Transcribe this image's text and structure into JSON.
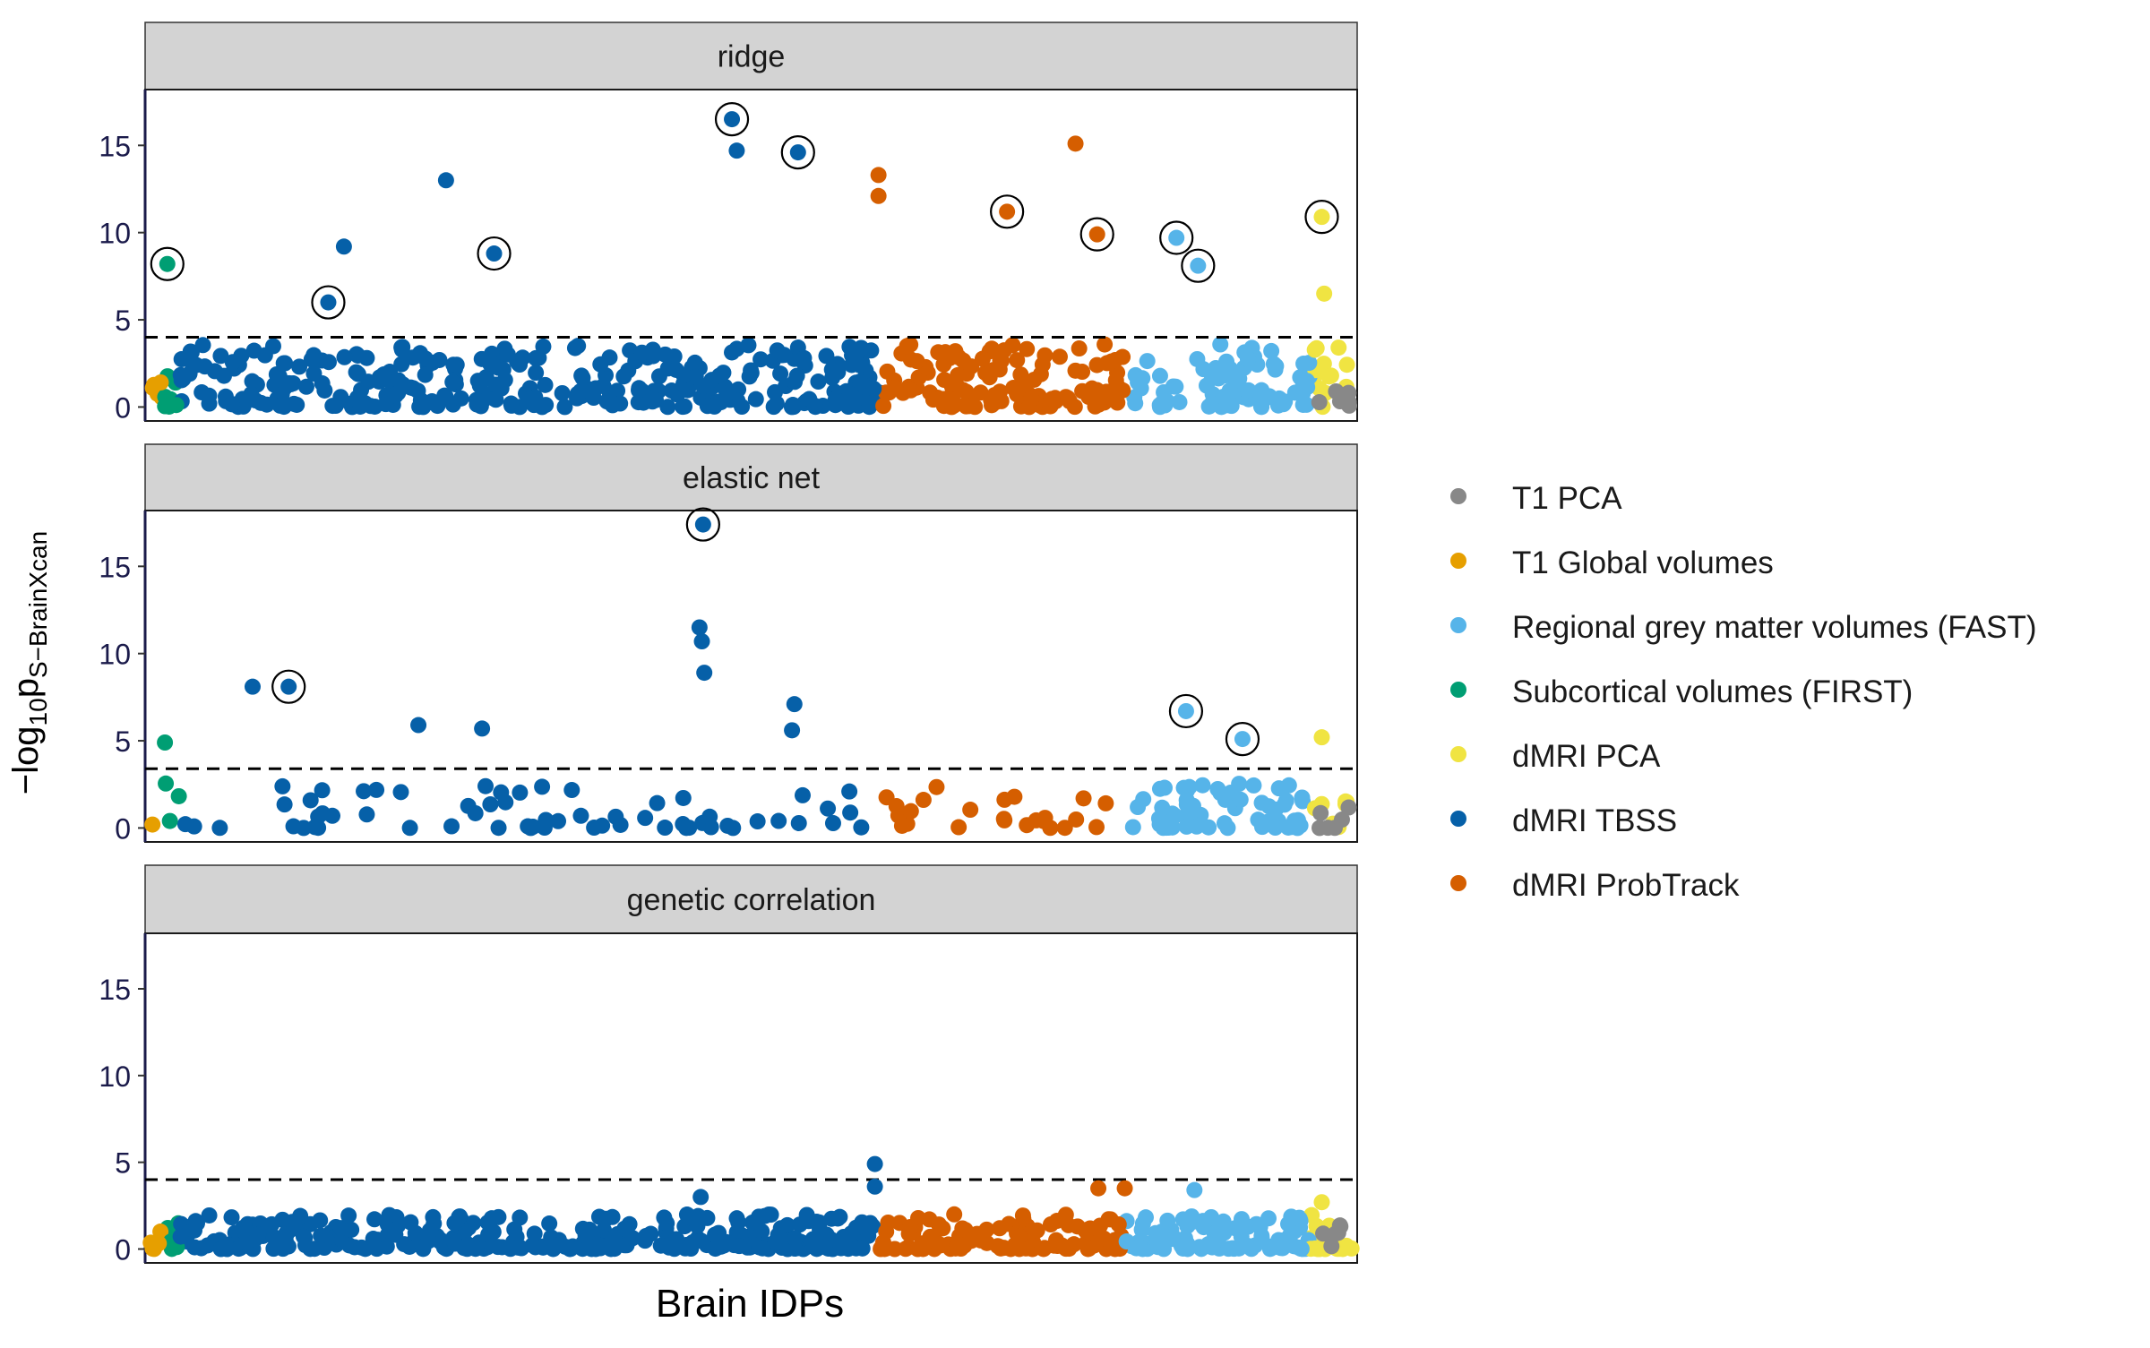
{
  "figure": {
    "ylabel_main": "−log",
    "ylabel_sub": "10",
    "ylabel_p": "p",
    "ylabel_subscript": "S−BrainXcan",
    "xlabel": "Brain IDPs"
  },
  "legend": {
    "placement": "right",
    "items": [
      {
        "label": "T1 PCA",
        "color": "#888888"
      },
      {
        "label": "T1 Global volumes",
        "color": "#E69F00"
      },
      {
        "label": "Regional grey matter volumes (FAST)",
        "color": "#56B4E9"
      },
      {
        "label": "Subcortical volumes (FIRST)",
        "color": "#009E73"
      },
      {
        "label": "dMRI PCA",
        "color": "#F0E442"
      },
      {
        "label": "dMRI TBSS",
        "color": "#0660A8"
      },
      {
        "label": "dMRI ProbTrack",
        "color": "#D55E00"
      }
    ]
  },
  "chart_data": [
    {
      "type": "scatter",
      "title": "ridge",
      "ylim": [
        -0.8,
        18.2
      ],
      "yticks": [
        "0",
        "5",
        "10",
        "15"
      ],
      "threshold": 4.0,
      "highlighted": [
        {
          "x": 0.014,
          "y": 8.2
        },
        {
          "x": 0.148,
          "y": 6.0
        },
        {
          "x": 0.286,
          "y": 8.8
        },
        {
          "x": 0.484,
          "y": 16.5
        },
        {
          "x": 0.539,
          "y": 14.6
        },
        {
          "x": 0.713,
          "y": 11.2
        },
        {
          "x": 0.788,
          "y": 9.9
        },
        {
          "x": 0.854,
          "y": 9.7
        },
        {
          "x": 0.872,
          "y": 8.1
        },
        {
          "x": 0.975,
          "y": 10.9
        }
      ],
      "notable_points": [
        {
          "x": 0.246,
          "y": 13.0
        },
        {
          "x": 0.77,
          "y": 15.1
        },
        {
          "x": 0.606,
          "y": 13.3
        },
        {
          "x": 0.606,
          "y": 12.1
        },
        {
          "x": 0.488,
          "y": 14.7
        },
        {
          "x": 0.977,
          "y": 6.5
        },
        {
          "x": 0.161,
          "y": 9.2
        }
      ]
    },
    {
      "type": "scatter",
      "title": "elastic net",
      "ylim": [
        -0.8,
        18.2
      ],
      "yticks": [
        "0",
        "5",
        "10",
        "15"
      ],
      "threshold": 3.4,
      "highlighted": [
        {
          "x": 0.46,
          "y": 17.4
        },
        {
          "x": 0.115,
          "y": 8.1
        },
        {
          "x": 0.862,
          "y": 6.7
        },
        {
          "x": 0.909,
          "y": 5.1
        }
      ],
      "notable_points": [
        {
          "x": 0.457,
          "y": 11.5
        },
        {
          "x": 0.459,
          "y": 10.7
        },
        {
          "x": 0.461,
          "y": 8.9
        },
        {
          "x": 0.536,
          "y": 7.1
        },
        {
          "x": 0.534,
          "y": 5.6
        },
        {
          "x": 0.085,
          "y": 8.1
        },
        {
          "x": 0.223,
          "y": 5.9
        },
        {
          "x": 0.276,
          "y": 5.7
        },
        {
          "x": 0.012,
          "y": 4.9
        },
        {
          "x": 0.975,
          "y": 5.2
        }
      ]
    },
    {
      "type": "scatter",
      "title": "genetic correlation",
      "ylim": [
        -0.8,
        18.2
      ],
      "yticks": [
        "0",
        "5",
        "10",
        "15"
      ],
      "threshold": 4.0,
      "highlighted": [],
      "notable_points": [
        {
          "x": 0.603,
          "y": 4.9
        },
        {
          "x": 0.603,
          "y": 3.6
        },
        {
          "x": 0.458,
          "y": 3.0
        },
        {
          "x": 0.789,
          "y": 3.5
        },
        {
          "x": 0.811,
          "y": 3.5
        },
        {
          "x": 0.869,
          "y": 3.4
        },
        {
          "x": 0.975,
          "y": 2.7
        }
      ]
    }
  ]
}
